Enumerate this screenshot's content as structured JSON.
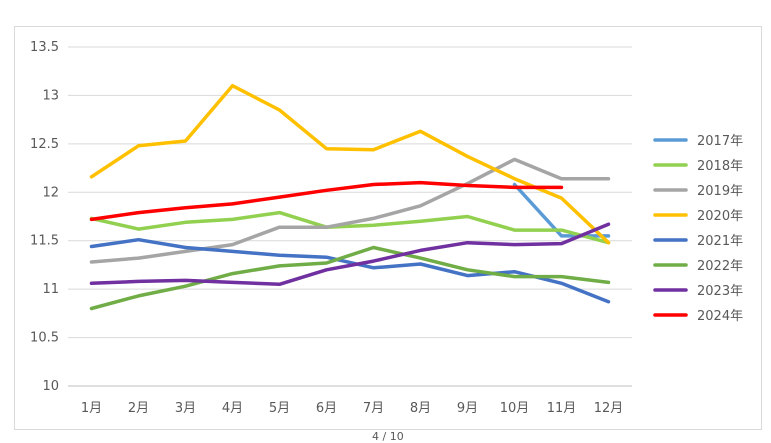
{
  "chart_data": {
    "type": "line",
    "categories": [
      "1月",
      "2月",
      "3月",
      "4月",
      "5月",
      "6月",
      "7月",
      "8月",
      "9月",
      "10月",
      "11月",
      "12月"
    ],
    "ylim": [
      10,
      13.5
    ],
    "yticks": [
      "10",
      "10.5",
      "11",
      "11.5",
      "12",
      "12.5",
      "13",
      "13.5"
    ],
    "grid": true,
    "legend_position": "right",
    "series": [
      {
        "name": "2017年",
        "color": "#5b9bd5",
        "values": [
          null,
          null,
          null,
          null,
          null,
          null,
          null,
          null,
          null,
          12.08,
          11.55,
          11.55
        ]
      },
      {
        "name": "2018年",
        "color": "#92d050",
        "values": [
          11.73,
          11.62,
          11.69,
          11.72,
          11.79,
          11.64,
          11.66,
          11.7,
          11.75,
          11.61,
          11.61,
          11.48
        ]
      },
      {
        "name": "2019年",
        "color": "#a5a5a5",
        "values": [
          11.28,
          11.32,
          11.39,
          11.46,
          11.64,
          11.64,
          11.73,
          11.86,
          12.09,
          12.34,
          12.14,
          12.14
        ]
      },
      {
        "name": "2020年",
        "color": "#ffc000",
        "values": [
          12.16,
          12.48,
          12.53,
          13.1,
          12.85,
          12.45,
          12.44,
          12.63,
          12.37,
          12.14,
          11.94,
          11.48
        ]
      },
      {
        "name": "2021年",
        "color": "#4472c4",
        "values": [
          11.44,
          11.51,
          11.43,
          11.39,
          11.35,
          11.33,
          11.22,
          11.26,
          11.14,
          11.18,
          11.06,
          10.87
        ]
      },
      {
        "name": "2022年",
        "color": "#70ad47",
        "values": [
          10.8,
          10.93,
          11.03,
          11.16,
          11.24,
          11.27,
          11.43,
          11.32,
          11.2,
          11.13,
          11.13,
          11.07
        ]
      },
      {
        "name": "2023年",
        "color": "#7030a0",
        "values": [
          11.06,
          11.08,
          11.09,
          11.07,
          11.05,
          11.2,
          11.29,
          11.4,
          11.48,
          11.46,
          11.47,
          11.67
        ]
      },
      {
        "name": "2024年",
        "color": "#ff0000",
        "values": [
          11.72,
          11.79,
          11.84,
          11.88,
          11.95,
          12.02,
          12.08,
          12.1,
          12.07,
          12.05,
          12.05,
          null
        ]
      }
    ]
  },
  "footer": {
    "page_text": "4 / 10"
  }
}
